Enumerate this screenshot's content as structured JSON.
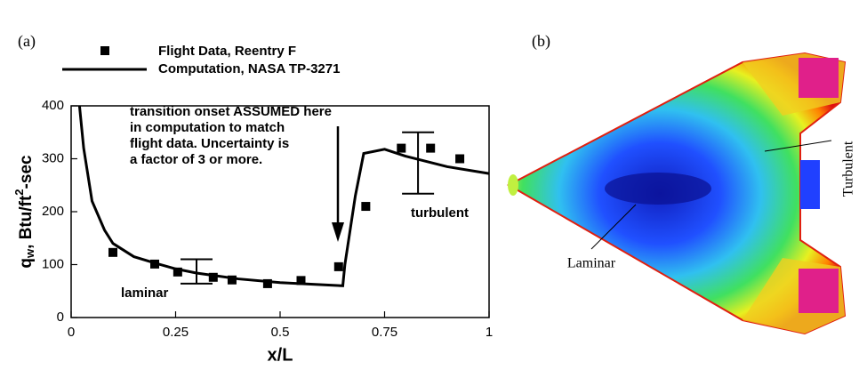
{
  "chart_data": {
    "type": "scatter",
    "panel_label": "(a)",
    "xlabel": "x/L",
    "ylabel": {
      "symbol": "q",
      "subscript": "w",
      "text": ", Btu/ft",
      "superscript": "2",
      "suffix": "-sec"
    },
    "xlim": [
      0,
      1
    ],
    "xticks": [
      0,
      0.25,
      0.5,
      0.75,
      1
    ],
    "ylim": [
      0,
      400
    ],
    "yticks": [
      0,
      100,
      200,
      300,
      400
    ],
    "series": [
      {
        "name": "Flight Data, Reentry F",
        "type": "scatter",
        "color": "#000000",
        "x": [
          0.1,
          0.2,
          0.255,
          0.34,
          0.385,
          0.47,
          0.55,
          0.64,
          0.705,
          0.79,
          0.86,
          0.93
        ],
        "values": [
          123,
          101,
          86,
          76,
          71,
          64,
          70,
          96,
          210,
          320,
          320,
          300
        ]
      },
      {
        "name": "Computation, NASA TP-3271",
        "type": "line",
        "color": "#000000",
        "x": [
          0.02,
          0.03,
          0.05,
          0.08,
          0.1,
          0.15,
          0.2,
          0.25,
          0.3,
          0.4,
          0.5,
          0.6,
          0.65,
          0.655,
          0.68,
          0.7,
          0.75,
          0.8,
          0.9,
          1.0
        ],
        "values": [
          400,
          320,
          220,
          165,
          140,
          115,
          103,
          92,
          84,
          73,
          66,
          62,
          60,
          100,
          230,
          310,
          318,
          305,
          285,
          272
        ]
      }
    ],
    "error_bars": {
      "x": [
        0.3,
        0.83
      ],
      "values": [
        87,
        292
      ],
      "errors": [
        23,
        58
      ]
    },
    "annotations": [
      "transition onset ASSUMED here",
      "in computation to match",
      "flight data.  Uncertainty is",
      "a factor of 3 or more.",
      "laminar",
      "turbulent"
    ]
  },
  "figure_b": {
    "panel_label": "(b)",
    "labels": [
      "Turbulent",
      "Laminar"
    ]
  }
}
